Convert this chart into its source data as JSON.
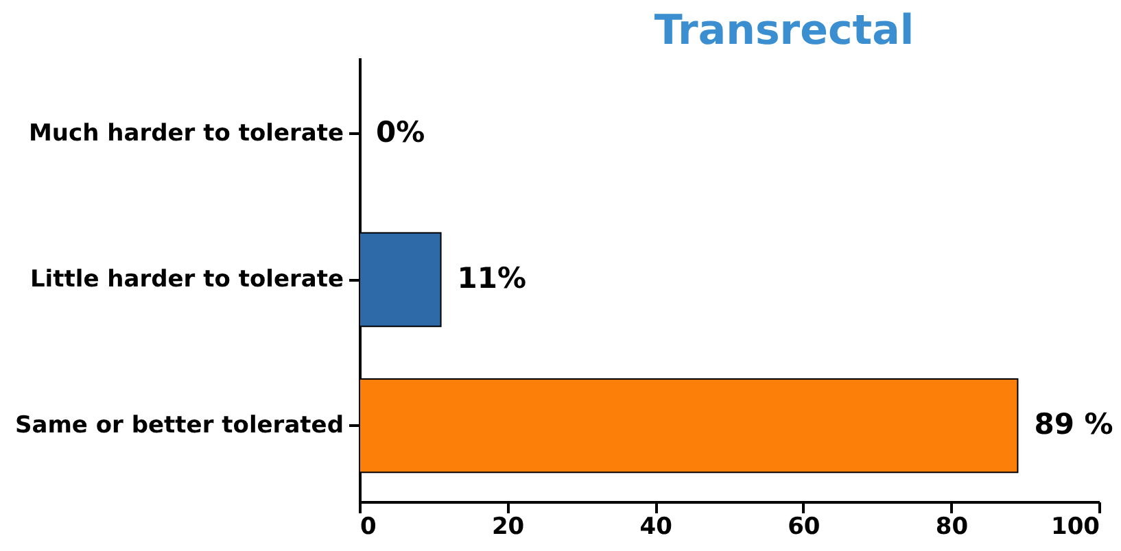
{
  "chart_data": {
    "type": "bar",
    "orientation": "horizontal",
    "title": "Transrectal",
    "categories": [
      "Much harder to tolerate",
      "Little harder to tolerate",
      "Same or better tolerated"
    ],
    "values": [
      0,
      11,
      89
    ],
    "colors": [
      "#2e6aa8",
      "#2e6aa8",
      "#fc7f0a"
    ],
    "value_labels": [
      "0%",
      "11%",
      "89 %"
    ],
    "xlim": [
      0,
      100
    ],
    "xticks": [
      0,
      20,
      40,
      60,
      80,
      100
    ],
    "grid": false
  }
}
